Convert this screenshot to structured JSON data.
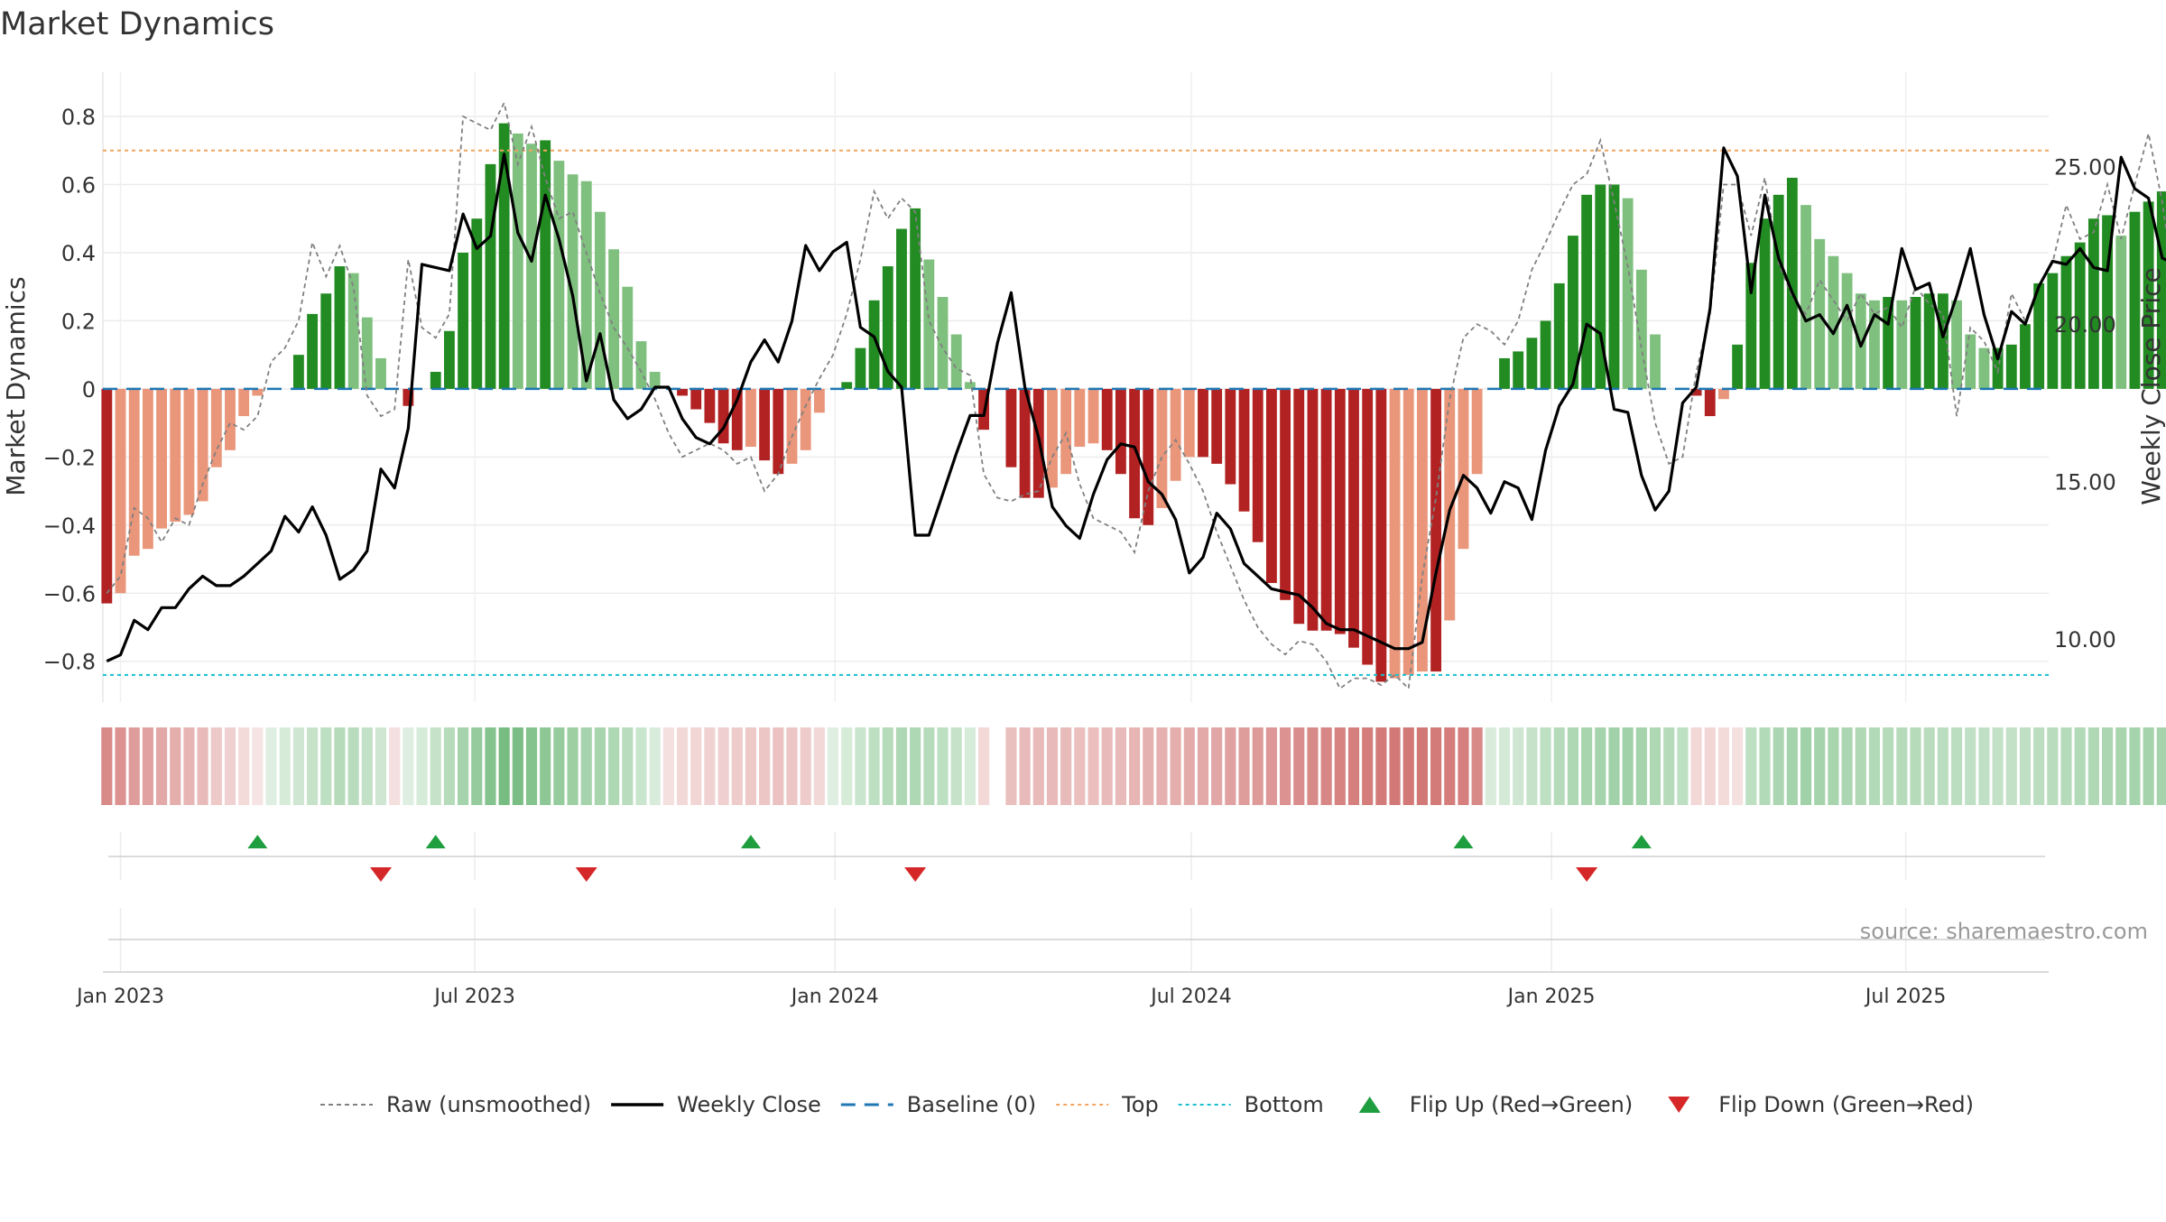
{
  "title": "Market Dynamics",
  "source": "source: sharemaestro.com",
  "colors": {
    "strong_red": "#b22222",
    "weak_red": "#e9967a",
    "strong_green": "#228b22",
    "weak_green": "#7fc07f",
    "raw_line": "#808080",
    "close_line": "#000000",
    "baseline": "#1f77b4",
    "top": "#f4a460",
    "bottom": "#17becf",
    "flip_up": "#1e9e3e",
    "flip_down": "#d62728"
  },
  "chart_data": {
    "type": "bar",
    "ylabel": "Market Dynamics",
    "y2label": "Weekly Close Price",
    "ylim": [
      -0.92,
      0.93
    ],
    "y2lim": [
      8.0,
      28.0
    ],
    "yticks": [
      -0.8,
      -0.6,
      -0.4,
      -0.2,
      0,
      0.2,
      0.4,
      0.6,
      0.8
    ],
    "y2ticks": [
      "10.00",
      "15.00",
      "20.00",
      "25.00"
    ],
    "top_level": 0.7,
    "bottom_level": -0.84,
    "baseline_level": 0,
    "x_start": "2022-12-23",
    "x_end": "2025-09-12",
    "xticks": [
      {
        "label": "Jan 2023",
        "date": "2023-01-01"
      },
      {
        "label": "Jul 2023",
        "date": "2023-07-01"
      },
      {
        "label": "Jan 2024",
        "date": "2024-01-01"
      },
      {
        "label": "Jul 2024",
        "date": "2024-07-01"
      },
      {
        "label": "Jan 2025",
        "date": "2025-01-01"
      },
      {
        "label": "Jul 2025",
        "date": "2025-07-01"
      }
    ],
    "first_week": "2022-12-25",
    "week_days": 7,
    "bar_values": [
      -0.63,
      -0.6,
      -0.49,
      -0.47,
      -0.41,
      -0.39,
      -0.37,
      -0.33,
      -0.23,
      -0.18,
      -0.08,
      -0.02,
      0,
      0,
      0.1,
      0.22,
      0.28,
      0.36,
      0.34,
      0.21,
      0.09,
      0,
      -0.05,
      0,
      0.05,
      0.17,
      0.4,
      0.5,
      0.66,
      0.78,
      0.75,
      0.72,
      0.73,
      0.67,
      0.63,
      0.61,
      0.52,
      0.41,
      0.3,
      0.14,
      0.05,
      0,
      -0.02,
      -0.06,
      -0.1,
      -0.16,
      -0.18,
      -0.17,
      -0.21,
      -0.25,
      -0.22,
      -0.18,
      -0.07,
      0,
      0.02,
      0.12,
      0.26,
      0.36,
      0.47,
      0.53,
      0.38,
      0.27,
      0.16,
      0.02,
      -0.12,
      0,
      -0.23,
      -0.32,
      -0.32,
      -0.29,
      -0.25,
      -0.17,
      -0.16,
      -0.18,
      -0.25,
      -0.38,
      -0.4,
      -0.35,
      -0.27,
      -0.2,
      -0.2,
      -0.22,
      -0.28,
      -0.36,
      -0.45,
      -0.57,
      -0.62,
      -0.69,
      -0.71,
      -0.71,
      -0.72,
      -0.76,
      -0.81,
      -0.86,
      -0.85,
      -0.84,
      -0.83,
      -0.83,
      -0.68,
      -0.47,
      -0.25,
      0,
      0.09,
      0.11,
      0.15,
      0.2,
      0.31,
      0.45,
      0.57,
      0.6,
      0.6,
      0.56,
      0.35,
      0.16,
      0,
      0,
      -0.02,
      -0.08,
      -0.03,
      0.13,
      0.37,
      0.5,
      0.57,
      0.62,
      0.54,
      0.44,
      0.39,
      0.34,
      0.28,
      0.26,
      0.27,
      0.26,
      0.27,
      0.28,
      0.28,
      0.26,
      0.16,
      0.12,
      0.12,
      0.13,
      0.19,
      0.31,
      0.34,
      0.39,
      0.43,
      0.5,
      0.51,
      0.45,
      0.52,
      0.55,
      0.58,
      0.57,
      0.49
    ],
    "raw_values": [
      -0.6,
      -0.55,
      -0.35,
      -0.38,
      -0.45,
      -0.38,
      -0.4,
      -0.28,
      -0.18,
      -0.1,
      -0.12,
      -0.08,
      0.08,
      0.12,
      0.2,
      0.43,
      0.33,
      0.42,
      0.3,
      -0.02,
      -0.08,
      -0.06,
      0.38,
      0.18,
      0.15,
      0.22,
      0.8,
      0.78,
      0.76,
      0.84,
      0.66,
      0.77,
      0.62,
      0.5,
      0.52,
      0.4,
      0.28,
      0.18,
      0.12,
      0.05,
      -0.03,
      -0.13,
      -0.2,
      -0.18,
      -0.16,
      -0.18,
      -0.22,
      -0.2,
      -0.3,
      -0.25,
      -0.14,
      -0.05,
      0.03,
      0.1,
      0.22,
      0.38,
      0.58,
      0.5,
      0.56,
      0.52,
      0.2,
      0.12,
      0.06,
      0.04,
      -0.25,
      -0.32,
      -0.33,
      -0.31,
      -0.3,
      -0.2,
      -0.13,
      -0.28,
      -0.38,
      -0.4,
      -0.42,
      -0.48,
      -0.3,
      -0.2,
      -0.15,
      -0.22,
      -0.3,
      -0.42,
      -0.52,
      -0.62,
      -0.7,
      -0.75,
      -0.78,
      -0.74,
      -0.75,
      -0.8,
      -0.88,
      -0.85,
      -0.85,
      -0.87,
      -0.84,
      -0.88,
      -0.55,
      -0.32,
      -0.03,
      0.15,
      0.19,
      0.17,
      0.13,
      0.2,
      0.35,
      0.43,
      0.52,
      0.6,
      0.63,
      0.73,
      0.55,
      0.36,
      0.12,
      -0.1,
      -0.22,
      -0.2,
      0.05,
      0.22,
      0.6,
      0.6,
      0.45,
      0.62,
      0.37,
      0.27,
      0.22,
      0.32,
      0.26,
      0.2,
      0.28,
      0.22,
      0.24,
      0.18,
      0.3,
      0.25,
      0.22,
      -0.08,
      0.18,
      0.14,
      0.05,
      0.28,
      0.2,
      0.3,
      0.37,
      0.54,
      0.44,
      0.46,
      0.6,
      0.44,
      0.6,
      0.75,
      0.55,
      0.26
    ],
    "regime_values": [
      -0.6,
      -0.55,
      -0.48,
      -0.45,
      -0.4,
      -0.37,
      -0.33,
      -0.28,
      -0.2,
      -0.15,
      -0.08,
      -0.03,
      0.05,
      0.1,
      0.15,
      0.2,
      0.25,
      0.3,
      0.28,
      0.22,
      0.15,
      -0.05,
      0.05,
      0.1,
      0.2,
      0.3,
      0.4,
      0.5,
      0.6,
      0.68,
      0.65,
      0.6,
      0.55,
      0.5,
      0.45,
      0.4,
      0.38,
      0.35,
      0.28,
      0.18,
      0.08,
      -0.05,
      -0.1,
      -0.12,
      -0.14,
      -0.16,
      -0.18,
      -0.2,
      -0.22,
      -0.24,
      -0.22,
      -0.18,
      -0.1,
      0.05,
      0.1,
      0.18,
      0.25,
      0.3,
      0.35,
      0.35,
      0.3,
      0.25,
      0.2,
      0.1,
      -0.1,
      null,
      -0.25,
      -0.28,
      -0.3,
      -0.3,
      -0.28,
      -0.26,
      -0.26,
      -0.28,
      -0.3,
      -0.33,
      -0.35,
      -0.36,
      -0.37,
      -0.38,
      -0.4,
      -0.42,
      -0.45,
      -0.48,
      -0.5,
      -0.52,
      -0.55,
      -0.58,
      -0.6,
      -0.62,
      -0.64,
      -0.66,
      -0.68,
      -0.7,
      -0.72,
      -0.72,
      -0.72,
      -0.7,
      -0.68,
      -0.66,
      -0.6,
      0.08,
      0.12,
      0.15,
      0.2,
      0.25,
      0.3,
      0.35,
      0.38,
      0.4,
      0.42,
      0.42,
      0.4,
      0.35,
      0.3,
      0.25,
      -0.1,
      -0.12,
      -0.08,
      -0.05,
      0.25,
      0.32,
      0.36,
      0.4,
      0.42,
      0.4,
      0.38,
      0.36,
      0.34,
      0.32,
      0.3,
      0.3,
      0.3,
      0.28,
      0.26,
      0.26,
      0.24,
      0.24,
      0.22,
      0.22,
      0.24,
      0.26,
      0.28,
      0.3,
      0.32,
      0.34,
      0.36,
      0.38,
      0.4,
      0.4,
      0.4,
      0.4,
      0.4,
      0.38
    ],
    "close_prices": [
      9.3,
      9.5,
      10.6,
      10.3,
      11.0,
      11.0,
      11.6,
      12.0,
      11.7,
      11.7,
      12.0,
      12.4,
      12.8,
      13.9,
      13.4,
      14.2,
      13.3,
      11.9,
      12.2,
      12.8,
      15.4,
      14.8,
      16.7,
      21.9,
      21.8,
      21.7,
      23.5,
      22.4,
      22.8,
      25.4,
      22.9,
      22.0,
      24.1,
      22.7,
      20.9,
      18.2,
      19.7,
      17.6,
      17.0,
      17.3,
      18.0,
      18.0,
      17.0,
      16.4,
      16.2,
      16.7,
      17.6,
      18.8,
      19.5,
      18.8,
      20.1,
      22.5,
      21.7,
      22.3,
      22.6,
      19.9,
      19.6,
      18.5,
      18.0,
      13.3,
      13.3,
      14.6,
      15.9,
      17.1,
      17.1,
      19.4,
      21.0,
      18.0,
      16.4,
      14.2,
      13.6,
      13.2,
      14.6,
      15.7,
      16.2,
      16.1,
      15.0,
      14.6,
      13.8,
      12.1,
      12.6,
      14.0,
      13.5,
      12.4,
      12.0,
      11.6,
      11.5,
      11.4,
      11.0,
      10.5,
      10.3,
      10.3,
      10.1,
      9.9,
      9.7,
      9.7,
      9.9,
      12.1,
      14.1,
      15.2,
      14.8,
      14.0,
      15.0,
      14.8,
      13.8,
      16.0,
      17.4,
      18.1,
      20.0,
      19.7,
      17.3,
      17.2,
      15.2,
      14.1,
      14.7,
      17.5,
      18.0,
      20.5,
      25.6,
      24.7,
      21.0,
      24.1,
      22.1,
      21.0,
      20.1,
      20.3,
      19.7,
      20.6,
      19.3,
      20.3,
      20.0,
      22.4,
      21.1,
      21.3,
      19.6,
      20.9,
      22.4,
      20.3,
      18.9,
      20.4,
      20.0,
      21.2,
      22.0,
      21.9,
      22.4,
      21.8,
      21.7,
      25.3,
      24.3,
      24.0,
      22.1,
      21.9
    ],
    "flips_up": [
      "2023-03-12",
      "2023-06-11",
      "2023-11-19",
      "2024-11-17",
      "2025-02-16"
    ],
    "flips_down": [
      "2023-05-14",
      "2023-08-27",
      "2024-02-11",
      "2025-01-19"
    ],
    "legend": [
      {
        "kind": "dash-gray",
        "label": "Raw (unsmoothed)"
      },
      {
        "kind": "solid-black",
        "label": "Weekly Close"
      },
      {
        "kind": "dash-blue",
        "label": "Baseline (0)"
      },
      {
        "kind": "dot-orange",
        "label": "Top"
      },
      {
        "kind": "dot-cyan",
        "label": "Bottom"
      },
      {
        "kind": "tri-up",
        "label": "Flip Up (Red→Green)"
      },
      {
        "kind": "tri-down",
        "label": "Flip Down (Green→Red)"
      }
    ]
  }
}
